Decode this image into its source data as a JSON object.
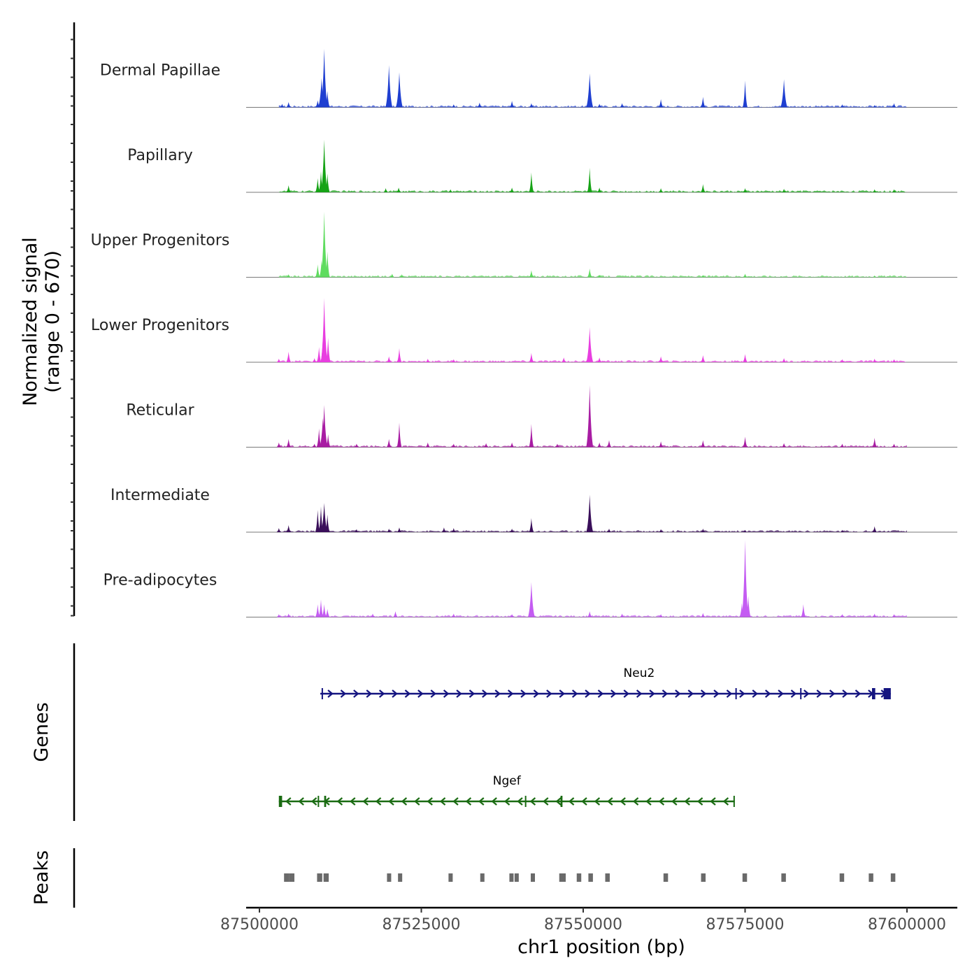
{
  "chart_data": {
    "type": "area",
    "title": "",
    "chromosome": "chr1",
    "xlabel": "chr1 position (bp)",
    "xlim": [
      87496000,
      87604000
    ],
    "xticks": [
      87500000,
      87525000,
      87550000,
      87575000,
      87600000
    ],
    "xtick_labels": [
      "87500000",
      "87525000",
      "87550000",
      "87575000",
      "87600000"
    ],
    "ylabel_line1": "Normalized signal",
    "ylabel_line2": "(range 0 - 670)",
    "ylim": [
      0,
      670
    ],
    "series": [
      {
        "name": "Dermal Papillae",
        "color": "#1f3fd1",
        "peaks": [
          [
            87503500,
            30
          ],
          [
            87504500,
            45
          ],
          [
            87509000,
            60
          ],
          [
            87509600,
            250
          ],
          [
            87510000,
            500
          ],
          [
            87510500,
            140
          ],
          [
            87520000,
            360
          ],
          [
            87521600,
            300
          ],
          [
            87530000,
            25
          ],
          [
            87534000,
            40
          ],
          [
            87539000,
            55
          ],
          [
            87542000,
            35
          ],
          [
            87551000,
            290
          ],
          [
            87552500,
            30
          ],
          [
            87556000,
            35
          ],
          [
            87562000,
            70
          ],
          [
            87568500,
            90
          ],
          [
            87575000,
            230
          ],
          [
            87581000,
            240
          ],
          [
            87590000,
            25
          ],
          [
            87595000,
            20
          ],
          [
            87598000,
            35
          ]
        ]
      },
      {
        "name": "Papillary",
        "color": "#16a316",
        "peaks": [
          [
            87504500,
            60
          ],
          [
            87509000,
            120
          ],
          [
            87509500,
            180
          ],
          [
            87510000,
            450
          ],
          [
            87510500,
            160
          ],
          [
            87519500,
            35
          ],
          [
            87521500,
            40
          ],
          [
            87529500,
            25
          ],
          [
            87539000,
            40
          ],
          [
            87542000,
            170
          ],
          [
            87551000,
            210
          ],
          [
            87552500,
            40
          ],
          [
            87562000,
            35
          ],
          [
            87568500,
            70
          ],
          [
            87575000,
            35
          ],
          [
            87581000,
            30
          ],
          [
            87595000,
            25
          ],
          [
            87598000,
            25
          ]
        ]
      },
      {
        "name": "Upper Progenitors",
        "color": "#5fdc5f",
        "peaks": [
          [
            87504500,
            25
          ],
          [
            87509000,
            110
          ],
          [
            87509600,
            150
          ],
          [
            87510000,
            560
          ],
          [
            87510500,
            220
          ],
          [
            87520500,
            30
          ],
          [
            87522000,
            25
          ],
          [
            87542000,
            60
          ],
          [
            87551000,
            75
          ],
          [
            87552500,
            20
          ],
          [
            87568500,
            20
          ],
          [
            87575000,
            30
          ],
          [
            87595000,
            15
          ]
        ]
      },
      {
        "name": "Lower Progenitors",
        "color": "#e83ee0",
        "peaks": [
          [
            87503000,
            30
          ],
          [
            87504500,
            90
          ],
          [
            87508500,
            35
          ],
          [
            87509200,
            130
          ],
          [
            87509800,
            200
          ],
          [
            87510000,
            550
          ],
          [
            87510600,
            210
          ],
          [
            87520000,
            50
          ],
          [
            87521600,
            120
          ],
          [
            87526000,
            30
          ],
          [
            87530000,
            25
          ],
          [
            87542000,
            80
          ],
          [
            87547000,
            40
          ],
          [
            87551000,
            300
          ],
          [
            87552500,
            40
          ],
          [
            87562000,
            50
          ],
          [
            87568500,
            60
          ],
          [
            87575000,
            70
          ],
          [
            87581000,
            35
          ],
          [
            87590000,
            25
          ],
          [
            87595000,
            30
          ],
          [
            87598000,
            25
          ]
        ]
      },
      {
        "name": "Reticular",
        "color": "#a81ca3",
        "peaks": [
          [
            87503000,
            40
          ],
          [
            87504500,
            70
          ],
          [
            87508500,
            30
          ],
          [
            87509200,
            160
          ],
          [
            87509800,
            250
          ],
          [
            87510000,
            360
          ],
          [
            87510600,
            110
          ],
          [
            87515000,
            30
          ],
          [
            87520000,
            70
          ],
          [
            87521600,
            210
          ],
          [
            87526000,
            40
          ],
          [
            87530000,
            30
          ],
          [
            87535000,
            35
          ],
          [
            87539000,
            40
          ],
          [
            87542000,
            200
          ],
          [
            87546000,
            30
          ],
          [
            87551000,
            530
          ],
          [
            87552500,
            40
          ],
          [
            87554000,
            60
          ],
          [
            87562000,
            50
          ],
          [
            87568500,
            60
          ],
          [
            87575000,
            90
          ],
          [
            87581000,
            35
          ],
          [
            87590000,
            30
          ],
          [
            87595000,
            80
          ],
          [
            87598000,
            30
          ]
        ]
      },
      {
        "name": "Intermediate",
        "color": "#3a0f5a",
        "peaks": [
          [
            87503000,
            35
          ],
          [
            87504500,
            60
          ],
          [
            87509000,
            190
          ],
          [
            87509500,
            220
          ],
          [
            87510000,
            250
          ],
          [
            87510500,
            150
          ],
          [
            87515000,
            25
          ],
          [
            87520000,
            30
          ],
          [
            87521600,
            40
          ],
          [
            87528500,
            40
          ],
          [
            87530000,
            35
          ],
          [
            87539000,
            30
          ],
          [
            87542000,
            120
          ],
          [
            87551000,
            320
          ],
          [
            87554000,
            30
          ],
          [
            87562000,
            25
          ],
          [
            87568500,
            30
          ],
          [
            87575000,
            20
          ],
          [
            87590000,
            20
          ],
          [
            87595000,
            50
          ]
        ]
      },
      {
        "name": "Pre-adipocytes",
        "color": "#c45cf2",
        "peaks": [
          [
            87503000,
            25
          ],
          [
            87504500,
            30
          ],
          [
            87509000,
            110
          ],
          [
            87509500,
            150
          ],
          [
            87510000,
            110
          ],
          [
            87510500,
            70
          ],
          [
            87517500,
            30
          ],
          [
            87521000,
            50
          ],
          [
            87530000,
            30
          ],
          [
            87539000,
            25
          ],
          [
            87542000,
            300
          ],
          [
            87551000,
            50
          ],
          [
            87556000,
            30
          ],
          [
            87562000,
            25
          ],
          [
            87568500,
            35
          ],
          [
            87574500,
            120
          ],
          [
            87575000,
            660
          ],
          [
            87575500,
            180
          ],
          [
            87584000,
            110
          ],
          [
            87590000,
            25
          ],
          [
            87595000,
            30
          ],
          [
            87598000,
            25
          ]
        ]
      }
    ],
    "genes_label": "Genes",
    "genes": [
      {
        "name": "Neu2",
        "strand": "+",
        "color": "#141480",
        "start": 87509400,
        "end": 87597500,
        "exons": [
          [
            87509600,
            87509800
          ],
          [
            87573500,
            87573700
          ],
          [
            87583500,
            87583700
          ],
          [
            87594600,
            87595100
          ],
          [
            87596400,
            87597500
          ]
        ]
      },
      {
        "name": "Ngef",
        "strand": "-",
        "color": "#1a6b12",
        "start": 87503000,
        "end": 87573400,
        "exons": [
          [
            87503000,
            87503500
          ],
          [
            87509000,
            87509200
          ],
          [
            87510000,
            87510300
          ],
          [
            87541000,
            87541200
          ],
          [
            87546500,
            87546800
          ],
          [
            87573200,
            87573400
          ]
        ]
      }
    ],
    "peaks_label": "Peaks",
    "peak_regions": [
      [
        87503800,
        87504600
      ],
      [
        87504600,
        87505400
      ],
      [
        87508900,
        87509700
      ],
      [
        87509900,
        87510700
      ],
      [
        87519700,
        87520300
      ],
      [
        87521400,
        87522000
      ],
      [
        87529200,
        87529800
      ],
      [
        87534100,
        87534700
      ],
      [
        87538600,
        87539200
      ],
      [
        87539400,
        87540000
      ],
      [
        87541900,
        87542500
      ],
      [
        87546300,
        87547300
      ],
      [
        87549000,
        87549700
      ],
      [
        87550800,
        87551500
      ],
      [
        87553400,
        87554100
      ],
      [
        87562400,
        87563100
      ],
      [
        87568200,
        87568900
      ],
      [
        87574600,
        87575300
      ],
      [
        87580600,
        87581300
      ],
      [
        87589600,
        87590300
      ],
      [
        87594100,
        87594800
      ],
      [
        87597500,
        87598200
      ]
    ]
  }
}
